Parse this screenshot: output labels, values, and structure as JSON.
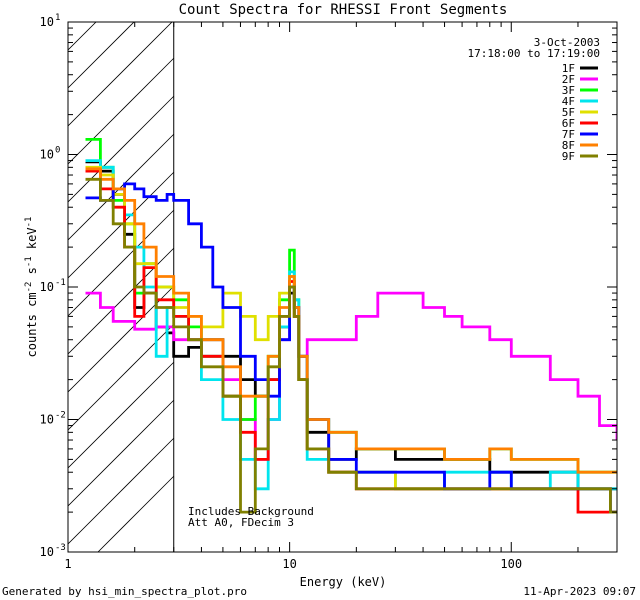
{
  "chart_data": {
    "type": "line",
    "title": "Count Spectra for RHESSI Front Segments",
    "xlabel": "Energy (keV)",
    "ylabel_parts": [
      "counts cm",
      "-2",
      " s",
      "-1",
      " keV",
      "-1"
    ],
    "xscale": "log",
    "yscale": "log",
    "xlim": [
      1,
      300
    ],
    "ylim": [
      0.001,
      10
    ],
    "x_major_ticks": [
      {
        "v": 1,
        "label": "1"
      },
      {
        "v": 10,
        "label": "10"
      },
      {
        "v": 100,
        "label": "100"
      }
    ],
    "y_major_ticks": [
      {
        "v": 0.001,
        "base": "10",
        "exp": "-3"
      },
      {
        "v": 0.01,
        "base": "10",
        "exp": "-2"
      },
      {
        "v": 0.1,
        "base": "10",
        "exp": "-1"
      },
      {
        "v": 1,
        "base": "10",
        "exp": "0"
      },
      {
        "v": 10,
        "base": "10",
        "exp": "1"
      }
    ],
    "excluded_region_kev": [
      1,
      3
    ],
    "date": "3-Oct-2003",
    "time_range": "17:18:00 to 17:19:00",
    "annotations": [
      "Includes Background",
      "Att A0, FDecim 3"
    ],
    "legend_position": "top-right",
    "series": [
      {
        "name": "1F",
        "color": "#000000",
        "points": [
          [
            1.2,
            0.88
          ],
          [
            1.4,
            0.75
          ],
          [
            1.6,
            0.5
          ],
          [
            1.8,
            0.25
          ],
          [
            2.0,
            0.07
          ],
          [
            2.2,
            0.09
          ],
          [
            2.5,
            0.05
          ],
          [
            2.8,
            0.045
          ],
          [
            3.0,
            0.03
          ],
          [
            3.5,
            0.035
          ],
          [
            4.0,
            0.04
          ],
          [
            5.0,
            0.03
          ],
          [
            6.0,
            0.02
          ],
          [
            7.0,
            0.015
          ],
          [
            8.0,
            0.02
          ],
          [
            9.0,
            0.05
          ],
          [
            10.0,
            0.09
          ],
          [
            10.5,
            0.06
          ],
          [
            11.0,
            0.02
          ],
          [
            12.0,
            0.008
          ],
          [
            15.0,
            0.005
          ],
          [
            20.0,
            0.006
          ],
          [
            30.0,
            0.005
          ],
          [
            40.0,
            0.005
          ],
          [
            60.0,
            0.005
          ],
          [
            80.0,
            0.004
          ],
          [
            100.0,
            0.004
          ],
          [
            150.0,
            0.004
          ],
          [
            200.0,
            0.003
          ],
          [
            280.0,
            0.003
          ]
        ]
      },
      {
        "name": "2F",
        "color": "#ff00ff",
        "points": [
          [
            1.2,
            0.09
          ],
          [
            1.4,
            0.07
          ],
          [
            1.6,
            0.055
          ],
          [
            2.0,
            0.048
          ],
          [
            2.5,
            0.05
          ],
          [
            3.0,
            0.04
          ],
          [
            4.0,
            0.03
          ],
          [
            5.0,
            0.02
          ],
          [
            6.0,
            0.01
          ],
          [
            7.0,
            0.005
          ],
          [
            8.0,
            0.01
          ],
          [
            9.0,
            0.04
          ],
          [
            10.0,
            0.1
          ],
          [
            10.5,
            0.07
          ],
          [
            11.0,
            0.03
          ],
          [
            12.0,
            0.04
          ],
          [
            15.0,
            0.04
          ],
          [
            20.0,
            0.06
          ],
          [
            25.0,
            0.09
          ],
          [
            30.0,
            0.09
          ],
          [
            40.0,
            0.07
          ],
          [
            50.0,
            0.06
          ],
          [
            60.0,
            0.05
          ],
          [
            80.0,
            0.04
          ],
          [
            100.0,
            0.03
          ],
          [
            150.0,
            0.02
          ],
          [
            200.0,
            0.015
          ],
          [
            250.0,
            0.009
          ],
          [
            300.0,
            0.007
          ]
        ]
      },
      {
        "name": "3F",
        "color": "#00ff00",
        "points": [
          [
            1.2,
            1.3
          ],
          [
            1.4,
            0.8
          ],
          [
            1.6,
            0.45
          ],
          [
            1.8,
            0.3
          ],
          [
            2.0,
            0.09
          ],
          [
            2.2,
            0.15
          ],
          [
            2.5,
            0.1
          ],
          [
            3.0,
            0.08
          ],
          [
            3.5,
            0.05
          ],
          [
            4.0,
            0.03
          ],
          [
            5.0,
            0.015
          ],
          [
            6.0,
            0.01
          ],
          [
            7.0,
            0.015
          ],
          [
            8.0,
            0.03
          ],
          [
            9.0,
            0.08
          ],
          [
            10.0,
            0.19
          ],
          [
            10.5,
            0.08
          ],
          [
            11.0,
            0.03
          ],
          [
            12.0,
            0.01
          ],
          [
            15.0,
            0.008
          ],
          [
            20.0,
            0.006
          ],
          [
            30.0,
            0.006
          ],
          [
            50.0,
            0.005
          ],
          [
            80.0,
            0.006
          ],
          [
            100.0,
            0.005
          ],
          [
            150.0,
            0.005
          ],
          [
            200.0,
            0.004
          ],
          [
            280.0,
            0.004
          ]
        ]
      },
      {
        "name": "4F",
        "color": "#00e5ee",
        "points": [
          [
            1.2,
            0.9
          ],
          [
            1.4,
            0.8
          ],
          [
            1.6,
            0.55
          ],
          [
            1.8,
            0.35
          ],
          [
            2.0,
            0.2
          ],
          [
            2.2,
            0.1
          ],
          [
            2.5,
            0.03
          ],
          [
            2.8,
            0.07
          ],
          [
            3.0,
            0.06
          ],
          [
            3.5,
            0.04
          ],
          [
            4.0,
            0.02
          ],
          [
            5.0,
            0.01
          ],
          [
            6.0,
            0.005
          ],
          [
            7.0,
            0.003
          ],
          [
            8.0,
            0.01
          ],
          [
            9.0,
            0.05
          ],
          [
            10.0,
            0.13
          ],
          [
            10.5,
            0.08
          ],
          [
            11.0,
            0.02
          ],
          [
            12.0,
            0.005
          ],
          [
            15.0,
            0.004
          ],
          [
            20.0,
            0.004
          ],
          [
            30.0,
            0.003
          ],
          [
            50.0,
            0.004
          ],
          [
            80.0,
            0.004
          ],
          [
            100.0,
            0.003
          ],
          [
            150.0,
            0.004
          ],
          [
            200.0,
            0.003
          ],
          [
            280.0,
            0.003
          ]
        ]
      },
      {
        "name": "5F",
        "color": "#e0e000",
        "points": [
          [
            1.2,
            0.8
          ],
          [
            1.4,
            0.7
          ],
          [
            1.6,
            0.5
          ],
          [
            1.8,
            0.3
          ],
          [
            2.0,
            0.15
          ],
          [
            2.5,
            0.1
          ],
          [
            3.0,
            0.07
          ],
          [
            3.5,
            0.06
          ],
          [
            4.0,
            0.05
          ],
          [
            5.0,
            0.09
          ],
          [
            6.0,
            0.06
          ],
          [
            7.0,
            0.04
          ],
          [
            8.0,
            0.06
          ],
          [
            9.0,
            0.09
          ],
          [
            10.0,
            0.12
          ],
          [
            10.5,
            0.06
          ],
          [
            11.0,
            0.02
          ],
          [
            12.0,
            0.006
          ],
          [
            15.0,
            0.004
          ],
          [
            20.0,
            0.004
          ],
          [
            30.0,
            0.003
          ],
          [
            50.0,
            0.003
          ],
          [
            80.0,
            0.003
          ],
          [
            100.0,
            0.003
          ],
          [
            150.0,
            0.003
          ],
          [
            200.0,
            0.003
          ],
          [
            280.0,
            0.002
          ]
        ]
      },
      {
        "name": "6F",
        "color": "#ff0000",
        "points": [
          [
            1.2,
            0.75
          ],
          [
            1.4,
            0.55
          ],
          [
            1.6,
            0.4
          ],
          [
            1.8,
            0.2
          ],
          [
            2.0,
            0.06
          ],
          [
            2.2,
            0.14
          ],
          [
            2.5,
            0.08
          ],
          [
            3.0,
            0.06
          ],
          [
            3.5,
            0.04
          ],
          [
            4.0,
            0.03
          ],
          [
            5.0,
            0.015
          ],
          [
            6.0,
            0.008
          ],
          [
            7.0,
            0.005
          ],
          [
            8.0,
            0.02
          ],
          [
            9.0,
            0.06
          ],
          [
            10.0,
            0.11
          ],
          [
            10.5,
            0.06
          ],
          [
            11.0,
            0.02
          ],
          [
            12.0,
            0.006
          ],
          [
            15.0,
            0.004
          ],
          [
            20.0,
            0.003
          ],
          [
            30.0,
            0.003
          ],
          [
            50.0,
            0.003
          ],
          [
            80.0,
            0.003
          ],
          [
            100.0,
            0.003
          ],
          [
            150.0,
            0.003
          ],
          [
            200.0,
            0.002
          ],
          [
            280.0,
            0.002
          ]
        ]
      },
      {
        "name": "7F",
        "color": "#0000ff",
        "points": [
          [
            1.2,
            0.47
          ],
          [
            1.4,
            0.45
          ],
          [
            1.6,
            0.55
          ],
          [
            1.8,
            0.6
          ],
          [
            2.0,
            0.55
          ],
          [
            2.2,
            0.48
          ],
          [
            2.5,
            0.45
          ],
          [
            2.8,
            0.5
          ],
          [
            3.0,
            0.45
          ],
          [
            3.5,
            0.3
          ],
          [
            4.0,
            0.2
          ],
          [
            4.5,
            0.1
          ],
          [
            5.0,
            0.07
          ],
          [
            6.0,
            0.03
          ],
          [
            7.0,
            0.02
          ],
          [
            8.0,
            0.015
          ],
          [
            9.0,
            0.04
          ],
          [
            10.0,
            0.1
          ],
          [
            10.5,
            0.07
          ],
          [
            11.0,
            0.03
          ],
          [
            12.0,
            0.01
          ],
          [
            15.0,
            0.005
          ],
          [
            20.0,
            0.004
          ],
          [
            30.0,
            0.004
          ],
          [
            50.0,
            0.003
          ],
          [
            80.0,
            0.004
          ],
          [
            100.0,
            0.003
          ],
          [
            150.0,
            0.003
          ],
          [
            200.0,
            0.003
          ],
          [
            280.0,
            0.002
          ]
        ]
      },
      {
        "name": "8F",
        "color": "#ff8000",
        "points": [
          [
            1.2,
            0.78
          ],
          [
            1.4,
            0.65
          ],
          [
            1.6,
            0.55
          ],
          [
            1.8,
            0.45
          ],
          [
            2.0,
            0.3
          ],
          [
            2.2,
            0.2
          ],
          [
            2.5,
            0.12
          ],
          [
            3.0,
            0.09
          ],
          [
            3.5,
            0.06
          ],
          [
            4.0,
            0.04
          ],
          [
            5.0,
            0.025
          ],
          [
            6.0,
            0.015
          ],
          [
            7.0,
            0.015
          ],
          [
            8.0,
            0.03
          ],
          [
            9.0,
            0.07
          ],
          [
            10.0,
            0.12
          ],
          [
            10.5,
            0.07
          ],
          [
            11.0,
            0.03
          ],
          [
            12.0,
            0.01
          ],
          [
            15.0,
            0.008
          ],
          [
            20.0,
            0.006
          ],
          [
            30.0,
            0.006
          ],
          [
            50.0,
            0.005
          ],
          [
            80.0,
            0.006
          ],
          [
            100.0,
            0.005
          ],
          [
            150.0,
            0.005
          ],
          [
            200.0,
            0.004
          ],
          [
            280.0,
            0.004
          ]
        ]
      },
      {
        "name": "9F",
        "color": "#808000",
        "points": [
          [
            1.2,
            0.65
          ],
          [
            1.4,
            0.45
          ],
          [
            1.6,
            0.3
          ],
          [
            1.8,
            0.2
          ],
          [
            2.0,
            0.1
          ],
          [
            2.2,
            0.09
          ],
          [
            2.5,
            0.07
          ],
          [
            3.0,
            0.05
          ],
          [
            3.5,
            0.04
          ],
          [
            4.0,
            0.025
          ],
          [
            5.0,
            0.015
          ],
          [
            6.0,
            0.002
          ],
          [
            7.0,
            0.006
          ],
          [
            8.0,
            0.025
          ],
          [
            9.0,
            0.06
          ],
          [
            10.0,
            0.1
          ],
          [
            10.5,
            0.06
          ],
          [
            11.0,
            0.02
          ],
          [
            12.0,
            0.006
          ],
          [
            15.0,
            0.004
          ],
          [
            20.0,
            0.003
          ],
          [
            30.0,
            0.003
          ],
          [
            50.0,
            0.003
          ],
          [
            80.0,
            0.003
          ],
          [
            100.0,
            0.003
          ],
          [
            150.0,
            0.003
          ],
          [
            200.0,
            0.003
          ],
          [
            280.0,
            0.002
          ]
        ]
      }
    ]
  },
  "footer": {
    "generated_by": "Generated by hsi_min_spectra_plot.pro",
    "timestamp": "11-Apr-2023 09:07"
  }
}
